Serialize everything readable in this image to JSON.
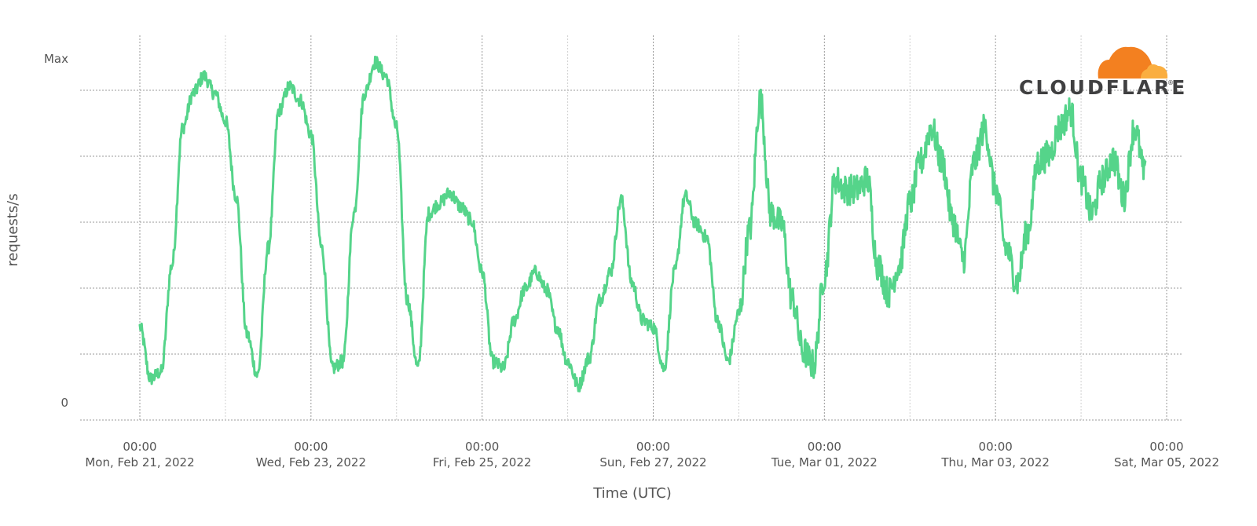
{
  "brand": {
    "name": "CLOUDFLARE",
    "registered_mark": "®",
    "cloud_icon": "cloudflare-cloud-icon",
    "colors": {
      "orange": "#F38020",
      "light_orange": "#FAAE40",
      "text": "#404041"
    }
  },
  "chart_data": {
    "type": "line",
    "title": "",
    "xlabel": "Time (UTC)",
    "ylabel": "requests/s",
    "y_tick_labels": [
      "0",
      "Max"
    ],
    "ylim": [
      0,
      1
    ],
    "y_gridlines": [
      0,
      0.2,
      0.4,
      0.6,
      0.8,
      1.0
    ],
    "x_ticks": [
      {
        "time": "00:00",
        "date": "Mon, Feb 21, 2022"
      },
      {
        "time": "00:00",
        "date": "Wed, Feb 23, 2022"
      },
      {
        "time": "00:00",
        "date": "Fri, Feb 25, 2022"
      },
      {
        "time": "00:00",
        "date": "Sun, Feb 27, 2022"
      },
      {
        "time": "00:00",
        "date": "Tue, Mar 01, 2022"
      },
      {
        "time": "00:00",
        "date": "Thu, Mar 03, 2022"
      },
      {
        "time": "00:00",
        "date": "Sat, Mar 05, 2022"
      }
    ],
    "x_range": [
      "2022-02-20T12:00",
      "2022-03-05T00:00"
    ],
    "grid": true,
    "legend": "none",
    "line_color": "#55D48A",
    "series": [
      {
        "x": [
          "2022-02-21T00:00",
          "2022-02-21T03:00",
          "2022-02-21T06:00",
          "2022-02-21T09:00",
          "2022-02-21T12:00",
          "2022-02-21T15:00",
          "2022-02-21T18:00",
          "2022-02-21T21:00",
          "2022-02-22T00:00",
          "2022-02-22T03:00",
          "2022-02-22T06:00",
          "2022-02-22T09:00",
          "2022-02-22T12:00",
          "2022-02-22T15:00",
          "2022-02-22T18:00",
          "2022-02-22T21:00",
          "2022-02-23T00:00",
          "2022-02-23T03:00",
          "2022-02-23T06:00",
          "2022-02-23T09:00",
          "2022-02-23T12:00",
          "2022-02-23T15:00",
          "2022-02-23T18:00",
          "2022-02-23T21:00",
          "2022-02-24T00:00",
          "2022-02-24T03:00",
          "2022-02-24T06:00",
          "2022-02-24T09:00",
          "2022-02-24T12:00",
          "2022-02-24T15:00",
          "2022-02-24T18:00",
          "2022-02-24T21:00",
          "2022-02-25T00:00",
          "2022-02-25T03:00",
          "2022-02-25T06:00",
          "2022-02-25T09:00",
          "2022-02-25T12:00",
          "2022-02-25T15:00",
          "2022-02-25T18:00",
          "2022-02-25T21:00",
          "2022-02-26T00:00",
          "2022-02-26T03:00",
          "2022-02-26T06:00",
          "2022-02-26T09:00",
          "2022-02-26T12:00",
          "2022-02-26T15:00",
          "2022-02-26T18:00",
          "2022-02-26T21:00",
          "2022-02-27T00:00",
          "2022-02-27T03:00",
          "2022-02-27T06:00",
          "2022-02-27T09:00",
          "2022-02-27T12:00",
          "2022-02-27T15:00",
          "2022-02-27T18:00",
          "2022-02-27T21:00",
          "2022-02-28T00:00",
          "2022-02-28T03:00",
          "2022-02-28T06:00",
          "2022-02-28T09:00",
          "2022-02-28T12:00",
          "2022-02-28T15:00",
          "2022-02-28T18:00",
          "2022-02-28T21:00",
          "2022-03-01T00:00",
          "2022-03-01T03:00",
          "2022-03-01T06:00",
          "2022-03-01T09:00",
          "2022-03-01T12:00",
          "2022-03-01T15:00",
          "2022-03-01T18:00",
          "2022-03-01T21:00",
          "2022-03-02T00:00",
          "2022-03-02T03:00",
          "2022-03-02T06:00",
          "2022-03-02T09:00",
          "2022-03-02T12:00",
          "2022-03-02T15:00",
          "2022-03-02T18:00",
          "2022-03-02T21:00",
          "2022-03-03T00:00",
          "2022-03-03T03:00",
          "2022-03-03T06:00",
          "2022-03-03T09:00",
          "2022-03-03T12:00",
          "2022-03-03T15:00",
          "2022-03-03T18:00",
          "2022-03-03T21:00",
          "2022-03-04T00:00",
          "2022-03-04T03:00",
          "2022-03-04T06:00",
          "2022-03-04T09:00",
          "2022-03-04T12:00",
          "2022-03-04T15:00",
          "2022-03-04T18:00"
        ],
        "y": [
          0.22,
          0.07,
          0.09,
          0.4,
          0.8,
          0.9,
          0.95,
          0.9,
          0.82,
          0.6,
          0.2,
          0.08,
          0.45,
          0.85,
          0.92,
          0.88,
          0.78,
          0.45,
          0.1,
          0.12,
          0.55,
          0.9,
          0.99,
          0.95,
          0.8,
          0.3,
          0.1,
          0.55,
          0.58,
          0.61,
          0.57,
          0.53,
          0.38,
          0.12,
          0.1,
          0.24,
          0.33,
          0.38,
          0.33,
          0.22,
          0.12,
          0.05,
          0.13,
          0.3,
          0.38,
          0.59,
          0.35,
          0.24,
          0.22,
          0.1,
          0.38,
          0.6,
          0.52,
          0.48,
          0.24,
          0.12,
          0.26,
          0.5,
          0.88,
          0.55,
          0.52,
          0.3,
          0.15,
          0.11,
          0.37,
          0.65,
          0.62,
          0.62,
          0.65,
          0.4,
          0.32,
          0.4,
          0.58,
          0.7,
          0.8,
          0.7,
          0.53,
          0.42,
          0.7,
          0.8,
          0.62,
          0.45,
          0.35,
          0.5,
          0.7,
          0.72,
          0.8,
          0.85,
          0.65,
          0.55,
          0.65,
          0.71,
          0.6,
          0.8,
          0.66
        ]
      }
    ]
  }
}
